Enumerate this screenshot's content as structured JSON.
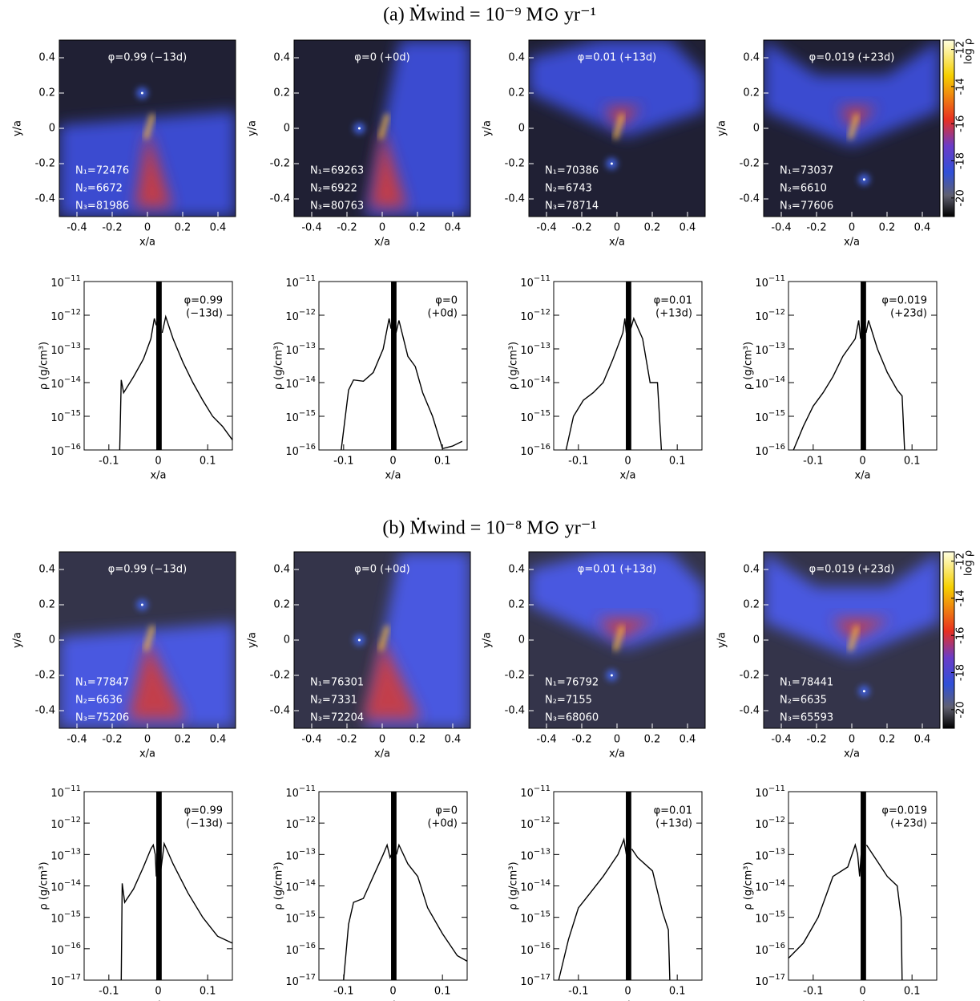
{
  "headings": [
    "(a) Ṁwind = 10⁻⁹ M⊙ yr⁻¹",
    "(b) Ṁwind = 10⁻⁸ M⊙ yr⁻¹"
  ],
  "chart_data": [
    {
      "type": "heatmap",
      "label": "φ=0.99 (−13d)",
      "counts": [
        "N₁=72476",
        "N₂=6672",
        "N₃=81986"
      ],
      "xlabel": "x/a",
      "ylabel": "y/a",
      "xlim": [
        -0.5,
        0.5
      ],
      "ylim": [
        -0.5,
        0.5
      ],
      "xticks": [
        -0.4,
        -0.2,
        0,
        0.2,
        0.4
      ],
      "yticks": [
        -0.4,
        -0.2,
        0,
        0.2,
        0.4
      ]
    },
    {
      "type": "heatmap",
      "label": "φ=0 (+0d)",
      "counts": [
        "N₁=69263",
        "N₂=6922",
        "N₃=80763"
      ],
      "xlabel": "x/a",
      "ylabel": "y/a",
      "xlim": [
        -0.5,
        0.5
      ],
      "ylim": [
        -0.5,
        0.5
      ],
      "xticks": [
        -0.4,
        -0.2,
        0,
        0.2,
        0.4
      ],
      "yticks": [
        -0.4,
        -0.2,
        0,
        0.2,
        0.4
      ]
    },
    {
      "type": "heatmap",
      "label": "φ=0.01 (+13d)",
      "counts": [
        "N₁=70386",
        "N₂=6743",
        "N₃=78714"
      ],
      "xlabel": "x/a",
      "ylabel": "y/a",
      "xlim": [
        -0.5,
        0.5
      ],
      "ylim": [
        -0.5,
        0.5
      ],
      "xticks": [
        -0.4,
        -0.2,
        0,
        0.2,
        0.4
      ],
      "yticks": [
        -0.4,
        -0.2,
        0,
        0.2,
        0.4
      ]
    },
    {
      "type": "heatmap",
      "label": "φ=0.019 (+23d)",
      "counts": [
        "N₁=73037",
        "N₂=6610",
        "N₃=77606"
      ],
      "xlabel": "x/a",
      "ylabel": "y/a",
      "xlim": [
        -0.5,
        0.5
      ],
      "ylim": [
        -0.5,
        0.5
      ],
      "xticks": [
        -0.4,
        -0.2,
        0,
        0.2,
        0.4
      ],
      "yticks": [
        -0.4,
        -0.2,
        0,
        0.2,
        0.4
      ],
      "colorbar": {
        "label": "log ρ",
        "lim": [
          -21,
          -11.5
        ],
        "ticks": [
          -12,
          -14,
          -16,
          -18,
          -20
        ]
      }
    },
    {
      "type": "line",
      "annotation": [
        "φ=0.99",
        "(−13d)"
      ],
      "xlabel": "x/a",
      "ylabel": "ρ (g/cm³)",
      "xlim": [
        -0.15,
        0.15
      ],
      "ylim": [
        1e-16,
        1e-11
      ],
      "ylog": true,
      "color": "#000000",
      "xticks": [
        -0.1,
        0,
        0.1
      ],
      "yticks": [
        {
          "value": 1e-16,
          "label": "10−16"
        },
        {
          "value": 1e-15,
          "label": "10−15"
        },
        {
          "value": 1e-14,
          "label": "10−14"
        },
        {
          "value": 1e-13,
          "label": "10−13"
        },
        {
          "value": 1e-12,
          "label": "10−12"
        },
        {
          "value": 1e-11,
          "label": "10−11"
        }
      ],
      "band": [
        -0.004,
        0.007
      ],
      "x": [
        -0.078,
        -0.075,
        -0.07,
        -0.05,
        -0.03,
        -0.015,
        -0.008,
        -0.004,
        0,
        0.008,
        0.015,
        0.03,
        0.05,
        0.07,
        0.09,
        0.11,
        0.13,
        0.15
      ],
      "values": [
        1e-16,
        1.2e-14,
        5e-15,
        1.5e-14,
        5e-14,
        2e-13,
        8e-13,
        5e-13,
        null,
        3e-13,
        9e-13,
        2e-13,
        4e-14,
        1e-14,
        3e-15,
        1e-15,
        5e-16,
        2e-16
      ]
    },
    {
      "type": "line",
      "annotation": [
        "φ=0",
        "(+0d)"
      ],
      "xlabel": "x/a",
      "ylabel": "ρ (g/cm³)",
      "xlim": [
        -0.15,
        0.15
      ],
      "ylim": [
        1e-16,
        1e-11
      ],
      "ylog": true,
      "color": "#000000",
      "xticks": [
        -0.1,
        0,
        0.1
      ],
      "yticks": [
        {
          "value": 1e-16,
          "label": "10−16"
        },
        {
          "value": 1e-15,
          "label": "10−15"
        },
        {
          "value": 1e-14,
          "label": "10−14"
        },
        {
          "value": 1e-13,
          "label": "10−13"
        },
        {
          "value": 1e-12,
          "label": "10−12"
        },
        {
          "value": 1e-11,
          "label": "10−11"
        }
      ],
      "band": [
        -0.004,
        0.007
      ],
      "x": [
        -0.105,
        -0.09,
        -0.08,
        -0.06,
        -0.04,
        -0.02,
        -0.008,
        -0.004,
        0,
        0.006,
        0.012,
        0.03,
        0.045,
        0.06,
        0.08,
        0.1,
        0.12,
        0.14
      ],
      "values": [
        1e-16,
        6e-15,
        1.2e-14,
        1.1e-14,
        2e-14,
        1e-13,
        8e-13,
        4e-13,
        null,
        3e-13,
        7e-13,
        6e-14,
        3e-14,
        5e-15,
        1e-15,
        1.1e-16,
        1.3e-16,
        1.8e-16
      ]
    },
    {
      "type": "line",
      "annotation": [
        "φ=0.01",
        "(+13d)"
      ],
      "xlabel": "x/a",
      "ylabel": "ρ (g/cm³)",
      "xlim": [
        -0.15,
        0.15
      ],
      "ylim": [
        1e-16,
        1e-11
      ],
      "ylog": true,
      "color": "#000000",
      "xticks": [
        -0.1,
        0,
        0.1
      ],
      "yticks": [
        {
          "value": 1e-16,
          "label": "10−16"
        },
        {
          "value": 1e-15,
          "label": "10−15"
        },
        {
          "value": 1e-14,
          "label": "10−14"
        },
        {
          "value": 1e-13,
          "label": "10−13"
        },
        {
          "value": 1e-12,
          "label": "10−12"
        },
        {
          "value": 1e-11,
          "label": "10−11"
        }
      ],
      "band": [
        -0.004,
        0.007
      ],
      "x": [
        -0.125,
        -0.11,
        -0.09,
        -0.07,
        -0.05,
        -0.03,
        -0.01,
        -0.006,
        -0.003,
        0,
        0.006,
        0.012,
        0.03,
        0.045,
        0.06,
        0.068
      ],
      "values": [
        1e-16,
        1e-15,
        3e-15,
        5e-15,
        1e-14,
        5e-14,
        3e-13,
        8e-13,
        3e-13,
        null,
        4e-13,
        8e-13,
        2e-13,
        1e-14,
        1e-14,
        1e-16
      ]
    },
    {
      "type": "line",
      "annotation": [
        "φ=0.019",
        "(+23d)"
      ],
      "xlabel": "x/a",
      "ylabel": "ρ (g/cm³)",
      "xlim": [
        -0.15,
        0.15
      ],
      "ylim": [
        1e-16,
        1e-11
      ],
      "ylog": true,
      "color": "#000000",
      "xticks": [
        -0.1,
        0,
        0.1
      ],
      "yticks": [
        {
          "value": 1e-16,
          "label": "10−16"
        },
        {
          "value": 1e-15,
          "label": "10−15"
        },
        {
          "value": 1e-14,
          "label": "10−14"
        },
        {
          "value": 1e-13,
          "label": "10−13"
        },
        {
          "value": 1e-12,
          "label": "10−12"
        },
        {
          "value": 1e-11,
          "label": "10−11"
        }
      ],
      "band": [
        -0.004,
        0.007
      ],
      "x": [
        -0.14,
        -0.12,
        -0.1,
        -0.08,
        -0.06,
        -0.04,
        -0.015,
        -0.008,
        -0.004,
        0,
        0.007,
        0.012,
        0.03,
        0.05,
        0.07,
        0.08,
        0.085
      ],
      "values": [
        1e-16,
        5e-16,
        2e-15,
        5e-15,
        1.5e-14,
        6e-14,
        2e-13,
        7e-13,
        2e-13,
        null,
        3e-13,
        7e-13,
        1e-13,
        2e-14,
        6e-15,
        4e-15,
        1e-16
      ]
    },
    {
      "type": "heatmap",
      "label": "φ=0.99 (−13d)",
      "counts": [
        "N₁=77847",
        "N₂=6636",
        "N₃=75206"
      ],
      "xlabel": "x/a",
      "ylabel": "y/a",
      "xlim": [
        -0.5,
        0.5
      ],
      "ylim": [
        -0.5,
        0.5
      ],
      "xticks": [
        -0.4,
        -0.2,
        0,
        0.2,
        0.4
      ],
      "yticks": [
        -0.4,
        -0.2,
        0,
        0.2,
        0.4
      ]
    },
    {
      "type": "heatmap",
      "label": "φ=0 (+0d)",
      "counts": [
        "N₁=76301",
        "N₂=7331",
        "N₃=72204"
      ],
      "xlabel": "x/a",
      "ylabel": "y/a",
      "xlim": [
        -0.5,
        0.5
      ],
      "ylim": [
        -0.5,
        0.5
      ],
      "xticks": [
        -0.4,
        -0.2,
        0,
        0.2,
        0.4
      ],
      "yticks": [
        -0.4,
        -0.2,
        0,
        0.2,
        0.4
      ]
    },
    {
      "type": "heatmap",
      "label": "φ=0.01 (+13d)",
      "counts": [
        "N₁=76792",
        "N₂=7155",
        "N₃=68060"
      ],
      "xlabel": "x/a",
      "ylabel": "y/a",
      "xlim": [
        -0.5,
        0.5
      ],
      "ylim": [
        -0.5,
        0.5
      ],
      "xticks": [
        -0.4,
        -0.2,
        0,
        0.2,
        0.4
      ],
      "yticks": [
        -0.4,
        -0.2,
        0,
        0.2,
        0.4
      ]
    },
    {
      "type": "heatmap",
      "label": "φ=0.019 (+23d)",
      "counts": [
        "N₁=78441",
        "N₂=6635",
        "N₃=65593"
      ],
      "xlabel": "x/a",
      "ylabel": "y/a",
      "xlim": [
        -0.5,
        0.5
      ],
      "ylim": [
        -0.5,
        0.5
      ],
      "xticks": [
        -0.4,
        -0.2,
        0,
        0.2,
        0.4
      ],
      "yticks": [
        -0.4,
        -0.2,
        0,
        0.2,
        0.4
      ],
      "colorbar": {
        "label": "log ρ",
        "lim": [
          -21,
          -11.5
        ],
        "ticks": [
          -12,
          -14,
          -16,
          -18,
          -20
        ]
      }
    },
    {
      "type": "line",
      "annotation": [
        "φ=0.99",
        "(−13d)"
      ],
      "xlabel": "x/a",
      "ylabel": "ρ (g/cm³)",
      "xlim": [
        -0.15,
        0.15
      ],
      "ylim": [
        1e-17,
        1e-11
      ],
      "ylog": true,
      "color": "#000000",
      "xticks": [
        -0.1,
        0,
        0.1
      ],
      "yticks": [
        {
          "value": 1e-17,
          "label": "10−17"
        },
        {
          "value": 1e-16,
          "label": "10−16"
        },
        {
          "value": 1e-15,
          "label": "10−15"
        },
        {
          "value": 1e-14,
          "label": "10−14"
        },
        {
          "value": 1e-13,
          "label": "10−13"
        },
        {
          "value": 1e-12,
          "label": "10−12"
        },
        {
          "value": 1e-11,
          "label": "10−11"
        }
      ],
      "band": [
        -0.004,
        0.007
      ],
      "x": [
        -0.075,
        -0.073,
        -0.068,
        -0.05,
        -0.03,
        -0.015,
        -0.01,
        -0.006,
        -0.004,
        0,
        0.005,
        0.012,
        0.03,
        0.06,
        0.09,
        0.12,
        0.15
      ],
      "values": [
        1e-17,
        1.2e-14,
        3e-15,
        8e-15,
        4e-14,
        1.5e-13,
        2e-13,
        1e-13,
        2e-14,
        null,
        3e-14,
        2.2e-13,
        5e-14,
        6e-15,
        1e-15,
        2.5e-16,
        1.5e-16
      ]
    },
    {
      "type": "line",
      "annotation": [
        "φ=0",
        "(+0d)"
      ],
      "xlabel": "x/a",
      "ylabel": "ρ (g/cm³)",
      "xlim": [
        -0.15,
        0.15
      ],
      "ylim": [
        1e-17,
        1e-11
      ],
      "ylog": true,
      "color": "#000000",
      "xticks": [
        -0.1,
        0,
        0.1
      ],
      "yticks": [
        {
          "value": 1e-17,
          "label": "10−17"
        },
        {
          "value": 1e-16,
          "label": "10−16"
        },
        {
          "value": 1e-15,
          "label": "10−15"
        },
        {
          "value": 1e-14,
          "label": "10−14"
        },
        {
          "value": 1e-13,
          "label": "10−13"
        },
        {
          "value": 1e-12,
          "label": "10−12"
        },
        {
          "value": 1e-11,
          "label": "10−11"
        }
      ],
      "band": [
        -0.004,
        0.007
      ],
      "x": [
        -0.1,
        -0.09,
        -0.08,
        -0.06,
        -0.04,
        -0.02,
        -0.012,
        -0.006,
        -0.003,
        0,
        0.007,
        0.012,
        0.03,
        0.05,
        0.07,
        0.1,
        0.13,
        0.15
      ],
      "values": [
        1e-17,
        6e-16,
        3e-15,
        4e-15,
        2e-14,
        1e-13,
        2e-13,
        8e-14,
        1e-13,
        null,
        1e-13,
        2e-13,
        5e-14,
        2e-14,
        2e-15,
        3e-16,
        6e-17,
        4e-17
      ]
    },
    {
      "type": "line",
      "annotation": [
        "φ=0.01",
        "(+13d)"
      ],
      "xlabel": "x/a",
      "ylabel": "ρ (g/cm³)",
      "xlim": [
        -0.15,
        0.15
      ],
      "ylim": [
        1e-17,
        1e-11
      ],
      "ylog": true,
      "color": "#000000",
      "xticks": [
        -0.1,
        0,
        0.1
      ],
      "yticks": [
        {
          "value": 1e-17,
          "label": "10−17"
        },
        {
          "value": 1e-16,
          "label": "10−16"
        },
        {
          "value": 1e-15,
          "label": "10−15"
        },
        {
          "value": 1e-14,
          "label": "10−14"
        },
        {
          "value": 1e-13,
          "label": "10−13"
        },
        {
          "value": 1e-12,
          "label": "10−12"
        },
        {
          "value": 1e-11,
          "label": "10−11"
        }
      ],
      "band": [
        -0.004,
        0.007
      ],
      "x": [
        -0.14,
        -0.12,
        -0.1,
        -0.08,
        -0.05,
        -0.02,
        -0.008,
        -0.003,
        0,
        0.008,
        0.02,
        0.05,
        0.07,
        0.082,
        0.085
      ],
      "values": [
        1e-17,
        2e-16,
        2e-15,
        5e-15,
        2e-14,
        1e-13,
        3e-13,
        1e-13,
        null,
        1.5e-13,
        8e-14,
        3e-14,
        1.5e-15,
        4e-16,
        1e-17
      ]
    },
    {
      "type": "line",
      "annotation": [
        "φ=0.019",
        "(+23d)"
      ],
      "xlabel": "x/a",
      "ylabel": "ρ (g/cm³)",
      "xlim": [
        -0.15,
        0.15
      ],
      "ylim": [
        1e-17,
        1e-11
      ],
      "ylog": true,
      "color": "#000000",
      "xticks": [
        -0.1,
        0,
        0.1
      ],
      "yticks": [
        {
          "value": 1e-17,
          "label": "10−17"
        },
        {
          "value": 1e-16,
          "label": "10−16"
        },
        {
          "value": 1e-15,
          "label": "10−15"
        },
        {
          "value": 1e-14,
          "label": "10−14"
        },
        {
          "value": 1e-13,
          "label": "10−13"
        },
        {
          "value": 1e-12,
          "label": "10−12"
        },
        {
          "value": 1e-11,
          "label": "10−11"
        }
      ],
      "band": [
        -0.004,
        0.007
      ],
      "x": [
        -0.15,
        -0.12,
        -0.09,
        -0.06,
        -0.03,
        -0.015,
        -0.01,
        -0.006,
        -0.003,
        0,
        0.008,
        0.03,
        0.05,
        0.07,
        0.078,
        0.08
      ],
      "values": [
        5e-17,
        1.5e-16,
        1e-15,
        2e-14,
        4e-14,
        2e-13,
        1e-13,
        2e-14,
        1e-13,
        null,
        2e-13,
        6e-14,
        2e-14,
        1e-14,
        1e-15,
        1e-17
      ]
    }
  ]
}
